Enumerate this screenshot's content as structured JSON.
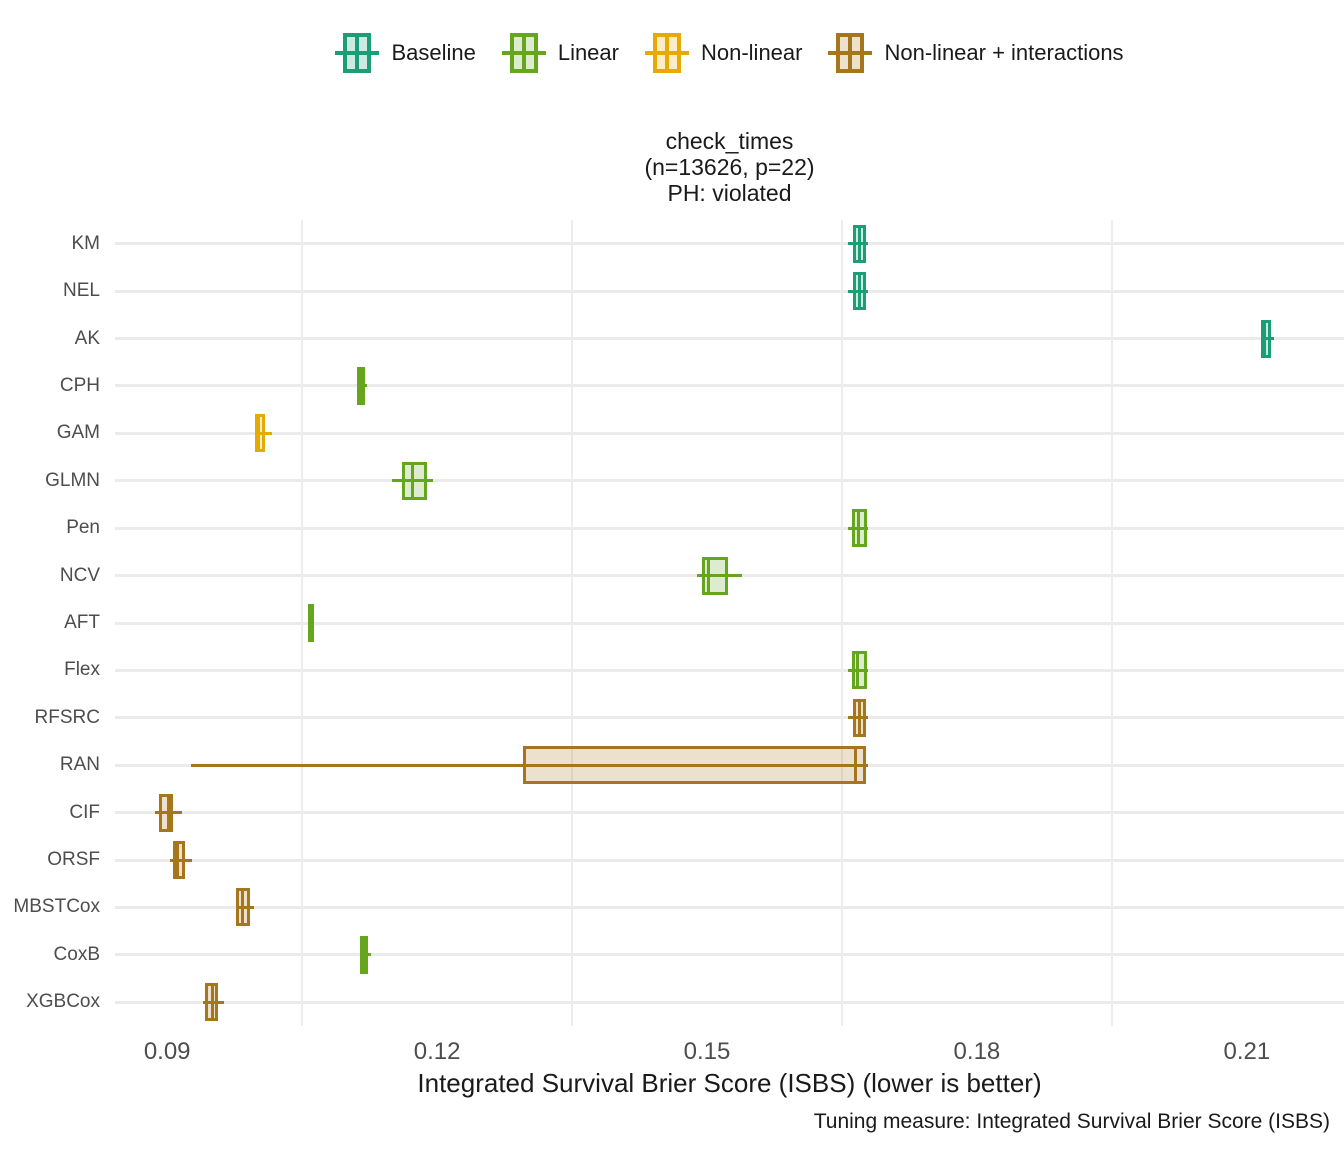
{
  "legend": {
    "items": [
      {
        "label": "Baseline",
        "color": "#1b9e77"
      },
      {
        "label": "Linear",
        "color": "#66a61e"
      },
      {
        "label": "Non-linear",
        "color": "#e6ab02"
      },
      {
        "label": "Non-linear + interactions",
        "color": "#a6761d"
      }
    ]
  },
  "title": {
    "line1": "check_times",
    "line2": "(n=13626, p=22)",
    "line3": "PH: violated"
  },
  "axis": {
    "xlabel": "Integrated Survival Brier Score (ISBS) (lower is better)",
    "caption": "Tuning measure: Integrated Survival Brier Score (ISBS)"
  },
  "chart_data": {
    "type": "boxplot",
    "orientation": "horizontal",
    "title": "check_times (n=13626, p=22) PH: violated",
    "xlabel": "Integrated Survival Brier Score (ISBS) (lower is better)",
    "caption": "Tuning measure: Integrated Survival Brier Score (ISBS)",
    "xlim": [
      0.0842,
      0.2208
    ],
    "x_ticks": [
      {
        "value": 0.09,
        "label": "0.09"
      },
      {
        "value": 0.12,
        "label": "0.12"
      },
      {
        "value": 0.15,
        "label": "0.15"
      },
      {
        "value": 0.18,
        "label": "0.18"
      },
      {
        "value": 0.21,
        "label": "0.21"
      }
    ],
    "x_minor_gridlines": [
      0.105,
      0.135,
      0.165,
      0.195
    ],
    "grid": "minor-x-and-major-y",
    "legend_position": "top",
    "groups": [
      {
        "name": "Baseline",
        "color": "#1b9e77"
      },
      {
        "name": "Linear",
        "color": "#66a61e"
      },
      {
        "name": "Non-linear",
        "color": "#e6ab02"
      },
      {
        "name": "Non-linear + interactions",
        "color": "#a6761d"
      }
    ],
    "rows": [
      {
        "model": "KM",
        "group": "Baseline",
        "whisker_low": 0.1657,
        "q1": 0.1662,
        "median": 0.1669,
        "q3": 0.1677,
        "whisker_high": 0.1679
      },
      {
        "model": "NEL",
        "group": "Baseline",
        "whisker_low": 0.1657,
        "q1": 0.1662,
        "median": 0.1669,
        "q3": 0.1677,
        "whisker_high": 0.1679
      },
      {
        "model": "AK",
        "group": "Baseline",
        "whisker_low": 0.2116,
        "q1": 0.2116,
        "median": 0.212,
        "q3": 0.2127,
        "whisker_high": 0.213
      },
      {
        "model": "CPH",
        "group": "Linear",
        "whisker_low": 0.1111,
        "q1": 0.1111,
        "median": 0.1115,
        "q3": 0.112,
        "whisker_high": 0.1122
      },
      {
        "model": "GAM",
        "group": "Non-linear",
        "whisker_low": 0.0998,
        "q1": 0.0998,
        "median": 0.1002,
        "q3": 0.1009,
        "whisker_high": 0.1017
      },
      {
        "model": "GLMN",
        "group": "Linear",
        "whisker_low": 0.115,
        "q1": 0.1161,
        "median": 0.1173,
        "q3": 0.1189,
        "whisker_high": 0.1196
      },
      {
        "model": "Pen",
        "group": "Linear",
        "whisker_low": 0.1657,
        "q1": 0.1661,
        "median": 0.1668,
        "q3": 0.1678,
        "whisker_high": 0.1679
      },
      {
        "model": "NCV",
        "group": "Linear",
        "whisker_low": 0.1489,
        "q1": 0.1494,
        "median": 0.1502,
        "q3": 0.1523,
        "whisker_high": 0.1539
      },
      {
        "model": "AFT",
        "group": "Linear",
        "whisker_low": 0.1056,
        "q1": 0.1056,
        "median": 0.1058,
        "q3": 0.1061,
        "whisker_high": 0.1061
      },
      {
        "model": "Flex",
        "group": "Linear",
        "whisker_low": 0.1657,
        "q1": 0.1661,
        "median": 0.1667,
        "q3": 0.1678,
        "whisker_high": 0.1679
      },
      {
        "model": "RFSRC",
        "group": "Non-linear + interactions",
        "whisker_low": 0.1657,
        "q1": 0.1662,
        "median": 0.1669,
        "q3": 0.1677,
        "whisker_high": 0.1679
      },
      {
        "model": "RAN",
        "group": "Non-linear + interactions",
        "whisker_low": 0.0926,
        "q1": 0.1296,
        "median": 0.1665,
        "q3": 0.1677,
        "whisker_high": 0.1679
      },
      {
        "model": "CIF",
        "group": "Non-linear + interactions",
        "whisker_low": 0.0887,
        "q1": 0.0891,
        "median": 0.0901,
        "q3": 0.0907,
        "whisker_high": 0.0917
      },
      {
        "model": "ORSF",
        "group": "Non-linear + interactions",
        "whisker_low": 0.0903,
        "q1": 0.0906,
        "median": 0.0912,
        "q3": 0.092,
        "whisker_high": 0.0928
      },
      {
        "model": "MBSTCox",
        "group": "Non-linear + interactions",
        "whisker_low": 0.0976,
        "q1": 0.0976,
        "median": 0.0984,
        "q3": 0.0992,
        "whisker_high": 0.0996
      },
      {
        "model": "CoxB",
        "group": "Linear",
        "whisker_low": 0.1114,
        "q1": 0.1114,
        "median": 0.1118,
        "q3": 0.1123,
        "whisker_high": 0.1126
      },
      {
        "model": "XGBCox",
        "group": "Non-linear + interactions",
        "whisker_low": 0.094,
        "q1": 0.0942,
        "median": 0.095,
        "q3": 0.0957,
        "whisker_high": 0.0963
      }
    ]
  }
}
